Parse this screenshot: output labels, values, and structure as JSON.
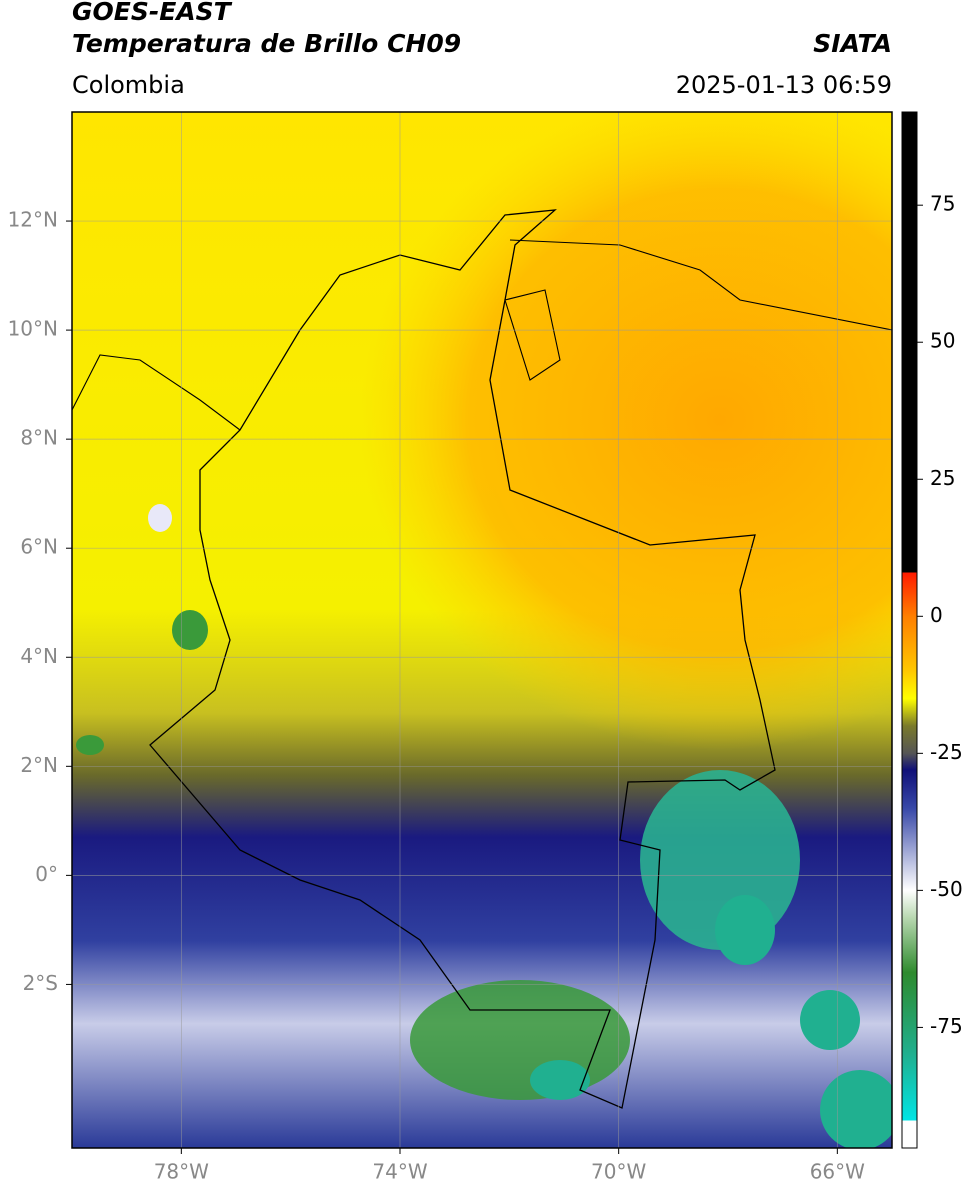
{
  "chart_data": {
    "type": "map",
    "title": "GOES-EAST",
    "subtitle": "Temperatura de Brillo CH09",
    "source": "SIATA",
    "region": "Colombia",
    "datetime": "2025-01-13 06:59",
    "xlim": [
      -80,
      -65
    ],
    "ylim": [
      -5,
      14
    ],
    "xticks": [
      {
        "value": -78,
        "label": "78°W"
      },
      {
        "value": -74,
        "label": "74°W"
      },
      {
        "value": -70,
        "label": "70°W"
      },
      {
        "value": -66,
        "label": "66°W"
      }
    ],
    "yticks": [
      {
        "value": 12,
        "label": "12°N"
      },
      {
        "value": 10,
        "label": "10°N"
      },
      {
        "value": 8,
        "label": "8°N"
      },
      {
        "value": 6,
        "label": "6°N"
      },
      {
        "value": 4,
        "label": "4°N"
      },
      {
        "value": 2,
        "label": "2°N"
      },
      {
        "value": 0,
        "label": "0°"
      },
      {
        "value": -2,
        "label": "2°S"
      }
    ],
    "grid": true,
    "colorbar": {
      "lim": [
        -97,
        92
      ],
      "ticks": [
        75,
        50,
        25,
        0,
        -25,
        -50,
        -75
      ],
      "colormap": [
        {
          "value": 92,
          "color": "#000000"
        },
        {
          "value": 8,
          "color": "#000000"
        },
        {
          "value": 8,
          "color": "#ff1a00"
        },
        {
          "value": 0,
          "color": "#ff7f00"
        },
        {
          "value": -10,
          "color": "#ffc800"
        },
        {
          "value": -15,
          "color": "#ffff00"
        },
        {
          "value": -20,
          "color": "#7a7a2a"
        },
        {
          "value": -25,
          "color": "#555555"
        },
        {
          "value": -28,
          "color": "#101078"
        },
        {
          "value": -35,
          "color": "#3848a8"
        },
        {
          "value": -50,
          "color": "#ffffff"
        },
        {
          "value": -55,
          "color": "#b8d8b0"
        },
        {
          "value": -65,
          "color": "#2e8b2e"
        },
        {
          "value": -80,
          "color": "#20b090"
        },
        {
          "value": -92,
          "color": "#00e5e5"
        },
        {
          "value": -92,
          "color": "#ffffff"
        },
        {
          "value": -97,
          "color": "#ffffff"
        }
      ]
    }
  }
}
